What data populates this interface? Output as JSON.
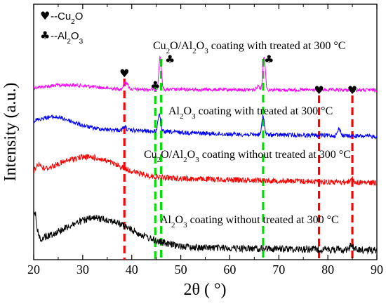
{
  "chart_data": {
    "type": "line",
    "xlabel_main": "2θ",
    "xlabel_unit": "( °)",
    "ylabel": "Intensity (a.u.)",
    "xlim": [
      20,
      90
    ],
    "xticks": [
      20,
      30,
      40,
      50,
      60,
      70,
      80,
      90
    ],
    "legend": [
      {
        "symbol": "♥",
        "prefix": "--Cu",
        "sub": "2",
        "suffix": "O"
      },
      {
        "symbol": "♣",
        "prefix": "--Al",
        "sub": "2",
        "suffix": "O",
        "sub2": "3"
      }
    ],
    "series": [
      {
        "label_parts": [
          [
            "Cu",
            ""
          ],
          [
            "2",
            "sub"
          ],
          [
            "O/Al",
            ""
          ],
          [
            "2",
            "sub"
          ],
          [
            "O",
            ""
          ],
          [
            "3",
            "sub"
          ],
          [
            " coating with treated at 300 °C",
            ""
          ]
        ],
        "color": "#ff00ff"
      },
      {
        "label_parts": [
          [
            "Al",
            ""
          ],
          [
            "2",
            "sub"
          ],
          [
            "O",
            ""
          ],
          [
            "3",
            "sub"
          ],
          [
            " coating with treated at 300 °C",
            ""
          ]
        ],
        "color": "#0000ff"
      },
      {
        "label_parts": [
          [
            "Cu",
            ""
          ],
          [
            "2",
            "sub"
          ],
          [
            "O/Al",
            ""
          ],
          [
            "2",
            "sub"
          ],
          [
            "O",
            ""
          ],
          [
            "3",
            "sub"
          ],
          [
            " coating without treated at 300 °C",
            ""
          ]
        ],
        "color": "#ff0000"
      },
      {
        "label_parts": [
          [
            "Al",
            ""
          ],
          [
            "2",
            "sub"
          ],
          [
            "O",
            ""
          ],
          [
            "3",
            "sub"
          ],
          [
            " coating without treated at 300 °C",
            ""
          ]
        ],
        "color": "#000000"
      }
    ],
    "reference_lines": [
      {
        "x": 38.5,
        "phase": "Cu2O",
        "color": "#ff0000"
      },
      {
        "x": 44.8,
        "phase": "Al2O3",
        "color": "#00e000"
      },
      {
        "x": 46.0,
        "phase": "Al2O3",
        "color": "#00e000"
      },
      {
        "x": 66.8,
        "phase": "Al2O3",
        "color": "#00e000"
      },
      {
        "x": 78.2,
        "phase": "Cu2O",
        "color": "#ff0000"
      },
      {
        "x": 85.0,
        "phase": "Cu2O",
        "color": "#ff0000"
      }
    ],
    "peak_markers": [
      {
        "x": 38.5,
        "symbol": "♥"
      },
      {
        "x": 44.8,
        "symbol": "♣"
      },
      {
        "x": 47.8,
        "symbol": "♣"
      },
      {
        "x": 68.0,
        "symbol": "♣"
      },
      {
        "x": 78.2,
        "symbol": "♥"
      },
      {
        "x": 85.0,
        "symbol": "♥"
      }
    ]
  }
}
